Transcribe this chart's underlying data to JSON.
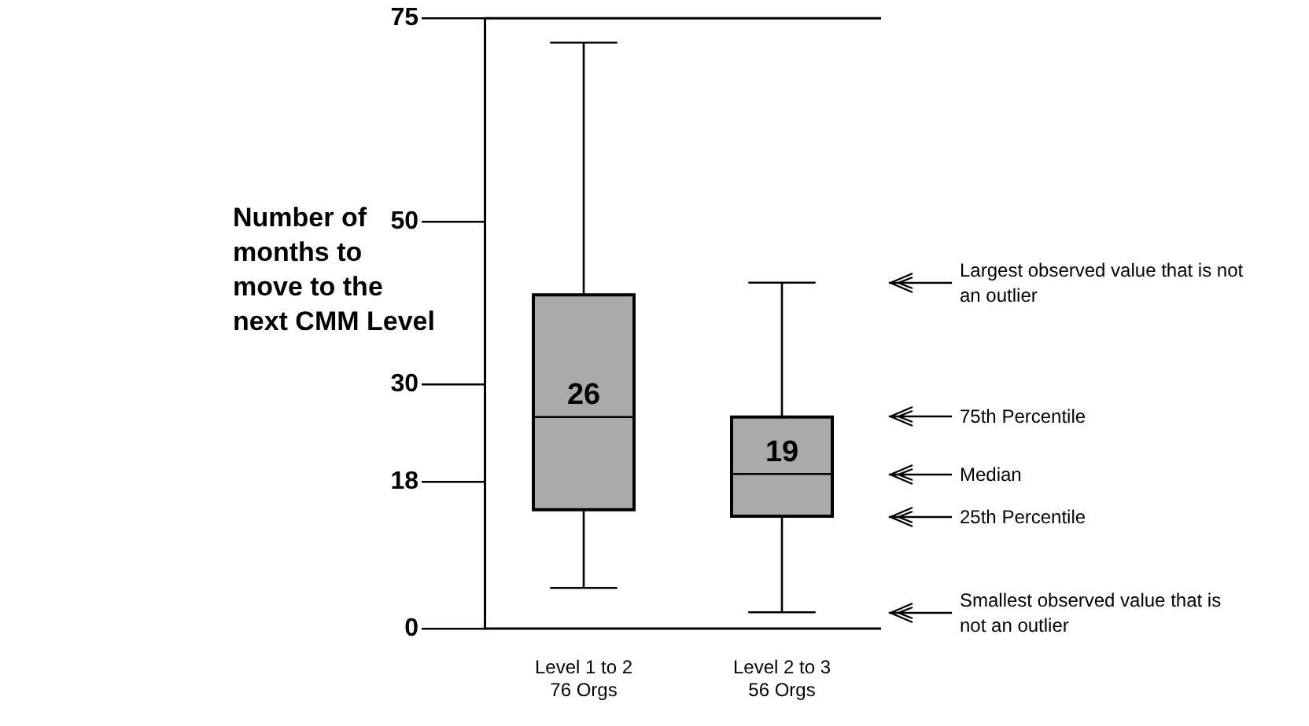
{
  "chart_data": {
    "type": "box",
    "ylabel": "Number of months to move to the next CMM Level",
    "categories": [
      "Level 1 to 2\n76 Orgs",
      "Level 2 to 3\n56 Orgs"
    ],
    "color": "#aaaaaa",
    "boxes": [
      {
        "low": 5,
        "q1": 14.6,
        "median": 26,
        "q3": 41,
        "high": 72
      },
      {
        "low": 2,
        "q1": 13.8,
        "median": 19,
        "q3": 26,
        "high": 42.5
      }
    ],
    "value_labels": [
      "26",
      "19"
    ],
    "ylim": [
      0,
      75
    ],
    "yticks": [
      0,
      18,
      30,
      50,
      75
    ],
    "grid": false,
    "legend": false,
    "annotations": [
      "Largest observed value that is not an outlier",
      "75th Percentile",
      "Median",
      "25th Percentile",
      "Smallest observed value that is not an outlier"
    ]
  }
}
